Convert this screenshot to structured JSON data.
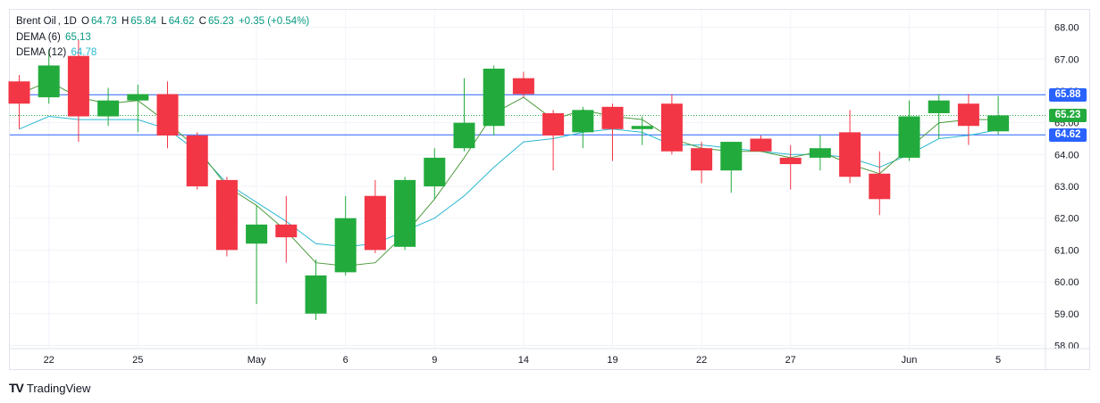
{
  "header": {
    "symbol": "Brent Oil",
    "interval": "1D",
    "open_label": "O",
    "open": "64.73",
    "high_label": "H",
    "high": "65.84",
    "low_label": "L",
    "low": "64.62",
    "close_label": "C",
    "close": "65.23",
    "change": "+0.35 (+0.54%)"
  },
  "indicators": [
    {
      "label": "DEMA (6)",
      "value": "65.13",
      "color": "#4c9a3c"
    },
    {
      "label": "DEMA (12)",
      "value": "64.78",
      "color": "#2bb8d0"
    }
  ],
  "price_tags": [
    {
      "value": "65.88",
      "price": 65.88,
      "color": "#2962ff"
    },
    {
      "value": "65.23",
      "price": 65.23,
      "color": "#22ab3c"
    },
    {
      "value": "64.62",
      "price": 64.62,
      "color": "#2962ff"
    }
  ],
  "brand": {
    "name": "TradingView",
    "logo": "TV"
  },
  "chart_data": {
    "type": "candlestick",
    "ylim": [
      57.9,
      68.55
    ],
    "y_ticks": [
      "68.00",
      "67.00",
      "66.00",
      "65.00",
      "64.00",
      "63.00",
      "62.00",
      "61.00",
      "60.00",
      "59.00",
      "58.00"
    ],
    "x_ticks": [
      {
        "index": 1,
        "label": "22"
      },
      {
        "index": 4,
        "label": "25"
      },
      {
        "index": 8,
        "label": "May"
      },
      {
        "index": 11,
        "label": "6"
      },
      {
        "index": 14,
        "label": "9"
      },
      {
        "index": 17,
        "label": "14"
      },
      {
        "index": 20,
        "label": "19"
      },
      {
        "index": 23,
        "label": "22"
      },
      {
        "index": 26,
        "label": "27"
      },
      {
        "index": 30,
        "label": "Jun"
      },
      {
        "index": 33,
        "label": "5"
      }
    ],
    "horizontal_lines": [
      {
        "price": 65.88,
        "style": "solid",
        "color": "#2962ff"
      },
      {
        "price": 64.62,
        "style": "solid",
        "color": "#2962ff"
      },
      {
        "price": 65.23,
        "style": "dotted",
        "color": "#22ab3c"
      }
    ],
    "up_color": "#22ab3c",
    "down_color": "#f23645",
    "candles": [
      {
        "o": 66.3,
        "h": 66.5,
        "l": 64.8,
        "c": 65.6
      },
      {
        "o": 65.8,
        "h": 67.3,
        "l": 65.6,
        "c": 66.8
      },
      {
        "o": 67.1,
        "h": 67.6,
        "l": 64.4,
        "c": 65.2
      },
      {
        "o": 65.2,
        "h": 66.1,
        "l": 64.9,
        "c": 65.7
      },
      {
        "o": 65.7,
        "h": 66.2,
        "l": 64.7,
        "c": 65.9
      },
      {
        "o": 65.9,
        "h": 66.3,
        "l": 64.2,
        "c": 64.6
      },
      {
        "o": 64.6,
        "h": 64.7,
        "l": 62.9,
        "c": 63.0
      },
      {
        "o": 63.2,
        "h": 63.3,
        "l": 60.8,
        "c": 61.0
      },
      {
        "o": 61.2,
        "h": 62.4,
        "l": 59.3,
        "c": 61.8
      },
      {
        "o": 61.8,
        "h": 62.7,
        "l": 60.6,
        "c": 61.4
      },
      {
        "o": 59.0,
        "h": 60.7,
        "l": 58.8,
        "c": 60.2
      },
      {
        "o": 60.3,
        "h": 62.7,
        "l": 60.2,
        "c": 62.0
      },
      {
        "o": 62.7,
        "h": 63.2,
        "l": 60.9,
        "c": 61.0
      },
      {
        "o": 61.1,
        "h": 63.3,
        "l": 61.0,
        "c": 63.2
      },
      {
        "o": 63.0,
        "h": 64.2,
        "l": 62.6,
        "c": 63.9
      },
      {
        "o": 64.2,
        "h": 66.4,
        "l": 64.1,
        "c": 65.0
      },
      {
        "o": 64.9,
        "h": 66.8,
        "l": 64.6,
        "c": 66.7
      },
      {
        "o": 66.4,
        "h": 66.6,
        "l": 65.8,
        "c": 65.9
      },
      {
        "o": 65.3,
        "h": 65.4,
        "l": 63.5,
        "c": 64.6
      },
      {
        "o": 64.7,
        "h": 65.5,
        "l": 64.2,
        "c": 65.4
      },
      {
        "o": 65.5,
        "h": 65.6,
        "l": 63.8,
        "c": 64.8
      },
      {
        "o": 64.8,
        "h": 65.2,
        "l": 64.3,
        "c": 64.9
      },
      {
        "o": 65.6,
        "h": 65.9,
        "l": 64.0,
        "c": 64.1
      },
      {
        "o": 64.2,
        "h": 64.4,
        "l": 63.1,
        "c": 63.5
      },
      {
        "o": 63.5,
        "h": 64.4,
        "l": 62.8,
        "c": 64.4
      },
      {
        "o": 64.5,
        "h": 64.6,
        "l": 64.1,
        "c": 64.1
      },
      {
        "o": 63.9,
        "h": 64.3,
        "l": 62.9,
        "c": 63.7
      },
      {
        "o": 63.9,
        "h": 64.6,
        "l": 63.5,
        "c": 64.2
      },
      {
        "o": 64.7,
        "h": 65.4,
        "l": 63.1,
        "c": 63.3
      },
      {
        "o": 63.4,
        "h": 64.1,
        "l": 62.1,
        "c": 62.6
      },
      {
        "o": 63.9,
        "h": 65.7,
        "l": 63.8,
        "c": 65.2
      },
      {
        "o": 65.3,
        "h": 65.9,
        "l": 64.5,
        "c": 65.7
      },
      {
        "o": 65.6,
        "h": 65.9,
        "l": 64.3,
        "c": 64.9
      },
      {
        "o": 64.73,
        "h": 65.84,
        "l": 64.62,
        "c": 65.23
      }
    ],
    "dema6": [
      65.9,
      66.3,
      65.8,
      65.6,
      65.7,
      65.0,
      64.2,
      63.0,
      62.4,
      61.6,
      60.6,
      60.5,
      60.6,
      61.5,
      62.6,
      63.9,
      65.3,
      65.8,
      65.1,
      65.4,
      65.2,
      65.1,
      64.5,
      64.2,
      64.1,
      64.1,
      63.9,
      64.1,
      63.7,
      63.4,
      64.2,
      65.0,
      65.1,
      65.1
    ],
    "dema12": [
      64.8,
      65.2,
      65.1,
      65.1,
      65.1,
      64.8,
      64.1,
      63.1,
      62.5,
      61.9,
      61.2,
      61.1,
      61.2,
      61.6,
      62.0,
      62.7,
      63.6,
      64.4,
      64.5,
      64.7,
      64.8,
      64.7,
      64.3,
      64.3,
      64.2,
      64.1,
      64.0,
      64.0,
      63.9,
      63.6,
      64.0,
      64.5,
      64.6,
      64.78
    ]
  }
}
